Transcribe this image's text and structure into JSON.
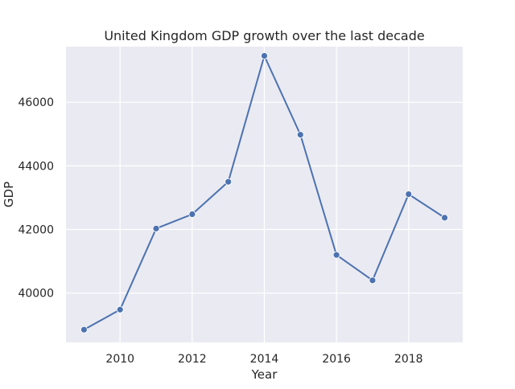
{
  "chart_data": {
    "type": "line",
    "title": "United Kingdom GDP growth over the last decade",
    "xlabel": "Year",
    "ylabel": "GDP",
    "x": [
      2009,
      2010,
      2011,
      2012,
      2013,
      2014,
      2015,
      2016,
      2017,
      2018,
      2019
    ],
    "series": [
      {
        "values": [
          38850,
          39480,
          42030,
          42480,
          43500,
          47460,
          44980,
          41200,
          40400,
          43110,
          42370
        ]
      }
    ],
    "xlim": [
      2008.5,
      2019.5
    ],
    "ylim": [
      38450,
      47750
    ],
    "xticks": [
      2010,
      2012,
      2014,
      2016,
      2018
    ],
    "yticks": [
      40000,
      42000,
      44000,
      46000
    ],
    "grid": true,
    "background": "#eaeaf2",
    "line_color": "#4c72b0",
    "grid_color": "#ffffff"
  }
}
